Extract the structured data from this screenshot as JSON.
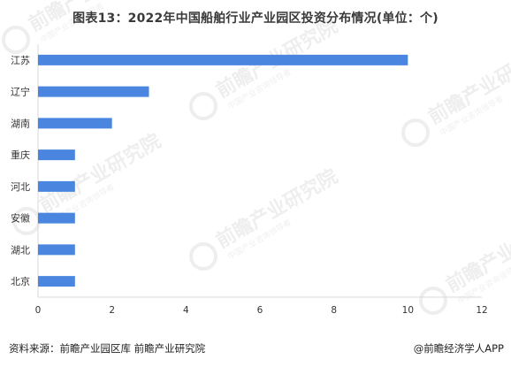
{
  "title": "图表13：2022年中国船舶行业产业园区投资分布情况(单位：个)",
  "footer": {
    "source": "资料来源：前瞻产业园区库 前瞻产业研究院",
    "brand": "@前瞻经济学人APP"
  },
  "watermark": {
    "text": "前瞻产业研究院",
    "subtext": "中国产业咨询领导者"
  },
  "colors": {
    "bar": "#4a86e0",
    "axis": "#d9d9d9",
    "grid": "#d9d9d9"
  },
  "chart_data": {
    "type": "bar",
    "orientation": "horizontal",
    "categories": [
      "江苏",
      "辽宁",
      "湖南",
      "重庆",
      "河北",
      "安徽",
      "湖北",
      "北京"
    ],
    "values": [
      10,
      3,
      2,
      1,
      1,
      1,
      1,
      1
    ],
    "xlim": [
      0,
      12
    ],
    "xticks": [
      0,
      2,
      4,
      6,
      8,
      10,
      12
    ],
    "grid": false
  }
}
